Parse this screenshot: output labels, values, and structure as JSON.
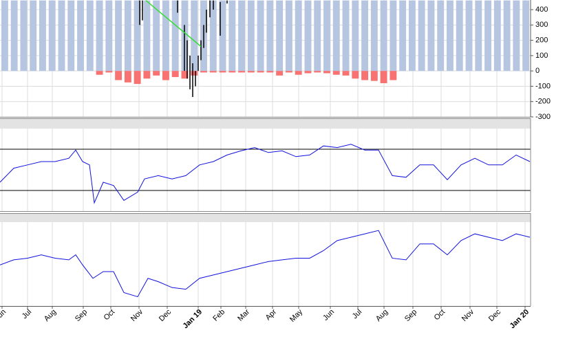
{
  "chart_data": [
    {
      "type": "bar",
      "categories": [
        null,
        null,
        null,
        null,
        null,
        null,
        null,
        null,
        null,
        null,
        null,
        null,
        null,
        null,
        null,
        null,
        null,
        null,
        null,
        null,
        null,
        null,
        null,
        null,
        null,
        null,
        null,
        null,
        null,
        null,
        null,
        null,
        null,
        null,
        null,
        null,
        null,
        null,
        null,
        null,
        null,
        null,
        null,
        null,
        null,
        null,
        null,
        null,
        null,
        null,
        null,
        null,
        null,
        null,
        null,
        null
      ],
      "series": [
        {
          "color": "#b7c6e0",
          "values": [
            460,
            460,
            460,
            460,
            460,
            460,
            460,
            460,
            460,
            460,
            460,
            460,
            460,
            460,
            460,
            460,
            460,
            460,
            460,
            460,
            460,
            460,
            460,
            460,
            460,
            460,
            460,
            460,
            460,
            460,
            460,
            460,
            460,
            460,
            460,
            460,
            460,
            460,
            460,
            460,
            460,
            460,
            460,
            460,
            460,
            460,
            460,
            460,
            460,
            460,
            460,
            460,
            460,
            460,
            460,
            460
          ]
        },
        {
          "color": "#f87272",
          "values": [
            null,
            null,
            null,
            null,
            null,
            null,
            null,
            null,
            null,
            null,
            -25,
            -10,
            -60,
            -75,
            -85,
            -50,
            -30,
            -60,
            -40,
            -50,
            -30,
            -10,
            -10,
            -10,
            -10,
            -10,
            -10,
            -10,
            -10,
            -30,
            -10,
            -25,
            -15,
            -10,
            -15,
            -25,
            -30,
            -50,
            -60,
            -65,
            -80,
            -60,
            null,
            null,
            null,
            null,
            null,
            null,
            null,
            null,
            null,
            null,
            null,
            null,
            null,
            null
          ]
        }
      ],
      "ylim": [
        -300,
        463
      ],
      "yticks": [
        400,
        300,
        200,
        100,
        0,
        -100,
        -200,
        -300
      ],
      "grid": true,
      "xlim": [
        0,
        771
      ],
      "candles": {
        "color": "#000000",
        "x": [
          203,
          207,
          258,
          268,
          272,
          276,
          280,
          284,
          288,
          292,
          296,
          300,
          305,
          310,
          320,
          330
        ],
        "high": [
          460,
          460,
          460,
          300,
          200,
          100,
          50,
          0,
          100,
          200,
          300,
          400,
          460,
          460,
          450,
          460
        ],
        "low": [
          300,
          330,
          380,
          0,
          -50,
          -120,
          -170,
          -100,
          0,
          70,
          150,
          250,
          350,
          400,
          230,
          440
        ]
      },
      "trend": {
        "color": "#33dd33",
        "x": [
          212,
          292
        ],
        "values": [
          460,
          160
        ]
      }
    },
    {
      "type": "line",
      "xlim": [
        0,
        771
      ],
      "ylim": [
        0,
        100
      ],
      "levels": [
        75,
        25
      ],
      "x": [
        0,
        20,
        40,
        60,
        80,
        100,
        110,
        120,
        130,
        137,
        150,
        165,
        180,
        200,
        210,
        230,
        250,
        270,
        290,
        310,
        330,
        350,
        370,
        390,
        410,
        430,
        450,
        470,
        490,
        510,
        530,
        550,
        570,
        590,
        610,
        630,
        650,
        670,
        690,
        710,
        730,
        750,
        770
      ],
      "series": [
        {
          "color": "#1010dd",
          "values": [
            35,
            52,
            56,
            60,
            60,
            64,
            74,
            60,
            56,
            10,
            35,
            31,
            13,
            23,
            39,
            43,
            39,
            43,
            56,
            60,
            68,
            73,
            77,
            71,
            73,
            66,
            68,
            79,
            77,
            81,
            74,
            74,
            43,
            41,
            56,
            56,
            38,
            56,
            64,
            56,
            56,
            68,
            60
          ]
        }
      ]
    },
    {
      "type": "line",
      "xlim": [
        0,
        771
      ],
      "ylim": [
        0,
        100
      ],
      "x": [
        0,
        20,
        40,
        60,
        80,
        100,
        110,
        120,
        135,
        150,
        165,
        180,
        200,
        215,
        230,
        250,
        270,
        290,
        310,
        330,
        350,
        370,
        390,
        410,
        430,
        450,
        470,
        490,
        510,
        530,
        550,
        570,
        590,
        610,
        630,
        650,
        670,
        690,
        710,
        730,
        750,
        770
      ],
      "series": [
        {
          "color": "#1010dd",
          "values": [
            49,
            55,
            57,
            61,
            57,
            55,
            61,
            49,
            33,
            41,
            41,
            16,
            11,
            33,
            29,
            22,
            20,
            33,
            37,
            41,
            45,
            49,
            53,
            55,
            57,
            57,
            66,
            78,
            82,
            86,
            90,
            57,
            55,
            74,
            74,
            61,
            78,
            86,
            82,
            78,
            86,
            82
          ]
        }
      ],
      "xticks": [
        {
          "value": 3,
          "label": "un"
        },
        {
          "value": 40,
          "label": "Jul"
        },
        {
          "value": 76,
          "label": "Aug"
        },
        {
          "value": 121,
          "label": "Sep"
        },
        {
          "value": 161,
          "label": "Oct"
        },
        {
          "value": 202,
          "label": "Nov"
        },
        {
          "value": 243,
          "label": "Dec"
        },
        {
          "value": 288,
          "label": "Jan 19",
          "bold": true
        },
        {
          "value": 321,
          "label": "Feb"
        },
        {
          "value": 357,
          "label": "Mar"
        },
        {
          "value": 396,
          "label": "Apr"
        },
        {
          "value": 434,
          "label": "May"
        },
        {
          "value": 480,
          "label": "Jun"
        },
        {
          "value": 520,
          "label": "Jul"
        },
        {
          "value": 558,
          "label": "Aug"
        },
        {
          "value": 600,
          "label": "Sep"
        },
        {
          "value": 641,
          "label": "Oct"
        },
        {
          "value": 683,
          "label": "Nov"
        },
        {
          "value": 722,
          "label": "Dec"
        },
        {
          "value": 763,
          "label": "Jan 20",
          "bold": true
        }
      ]
    }
  ]
}
